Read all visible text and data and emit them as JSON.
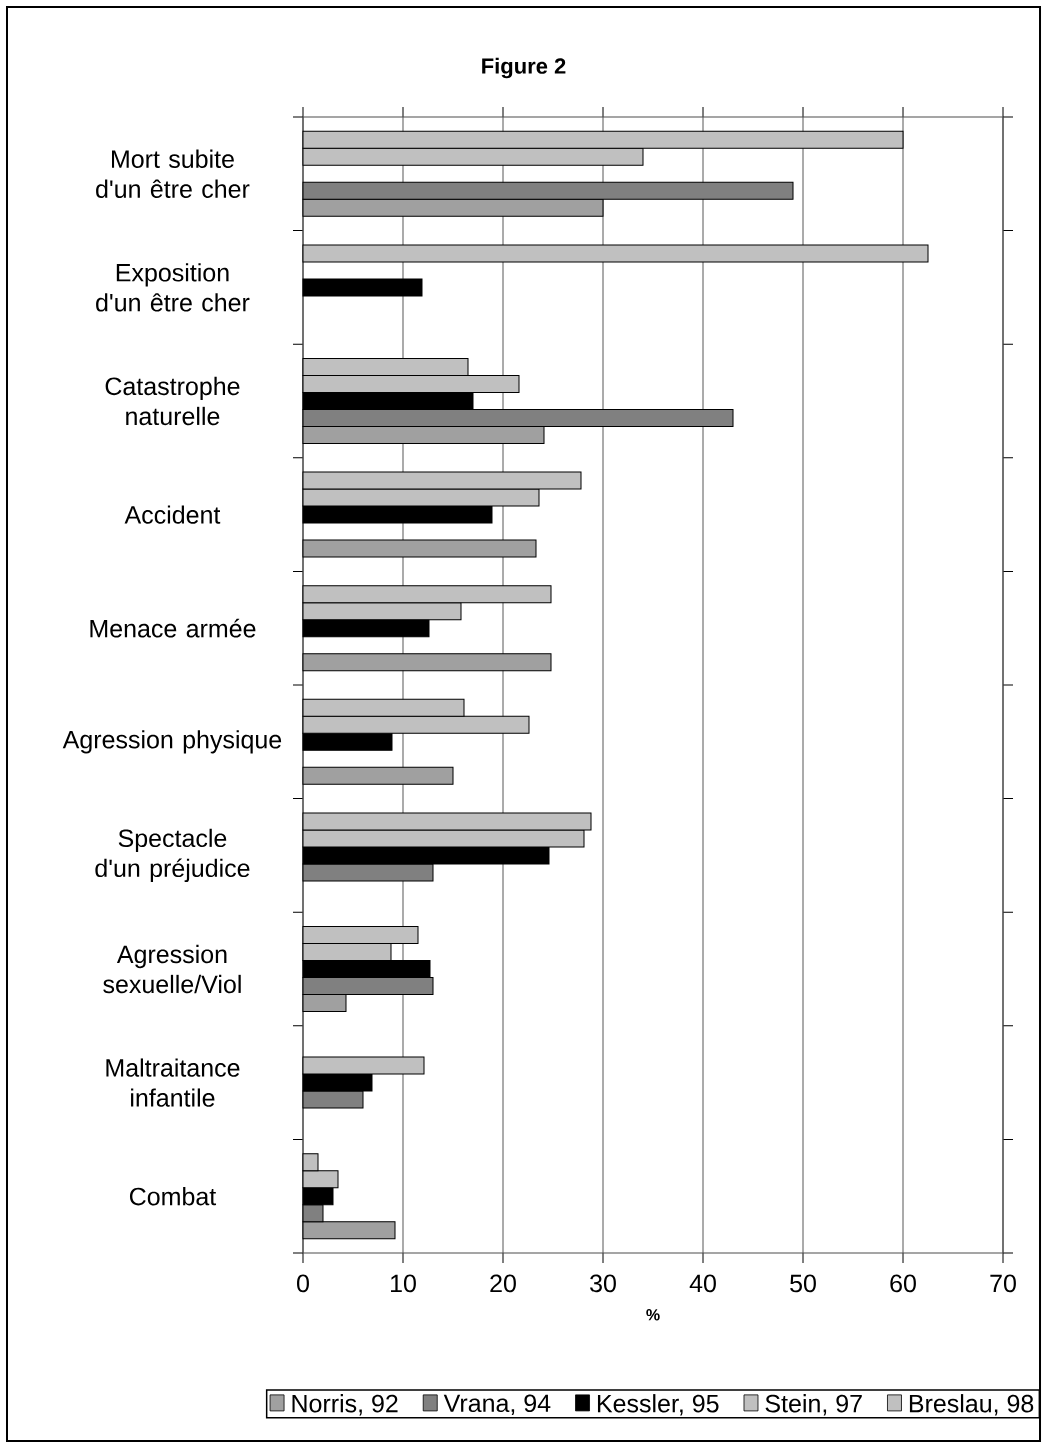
{
  "chart_data": {
    "type": "bar",
    "orientation": "horizontal",
    "title": "Figure 2",
    "xlabel": "%",
    "categories": [
      "Mort subite d'un être cher",
      "Exposition d'un être cher",
      "Catastrophe naturelle",
      "Accident",
      "Menace armée",
      "Agression physique",
      "Spectacle d'un préjudice",
      "Agression sexuelle/Viol",
      "Maltraitance infantile",
      "Combat"
    ],
    "series": [
      {
        "name": "Norris, 92",
        "color": "#a0a0a0",
        "values": [
          30.0,
          null,
          24.1,
          23.3,
          24.8,
          15.0,
          null,
          4.3,
          null,
          9.2
        ]
      },
      {
        "name": "Vrana, 94",
        "color": "#808080",
        "values": [
          49.0,
          null,
          43.0,
          null,
          null,
          null,
          13.0,
          13.0,
          6.0,
          2.0
        ]
      },
      {
        "name": "Kessler, 95",
        "color": "#000000",
        "values": [
          null,
          11.9,
          17.0,
          18.9,
          12.6,
          8.9,
          24.6,
          12.7,
          6.9,
          3.0
        ]
      },
      {
        "name": "Stein, 97",
        "color": "#c0c0c0",
        "values": [
          34.0,
          null,
          21.6,
          23.6,
          15.8,
          22.6,
          28.1,
          8.8,
          12.1,
          3.5
        ]
      },
      {
        "name": "Breslau, 98",
        "color": "#c0c0c0",
        "values": [
          60.0,
          62.5,
          16.5,
          27.8,
          24.8,
          16.1,
          28.8,
          11.5,
          null,
          1.5
        ]
      }
    ],
    "xlim": [
      0,
      70
    ],
    "xticks": [
      0,
      10,
      20,
      30,
      40,
      50,
      60,
      70
    ],
    "grid": "x",
    "legend": "bottom"
  }
}
